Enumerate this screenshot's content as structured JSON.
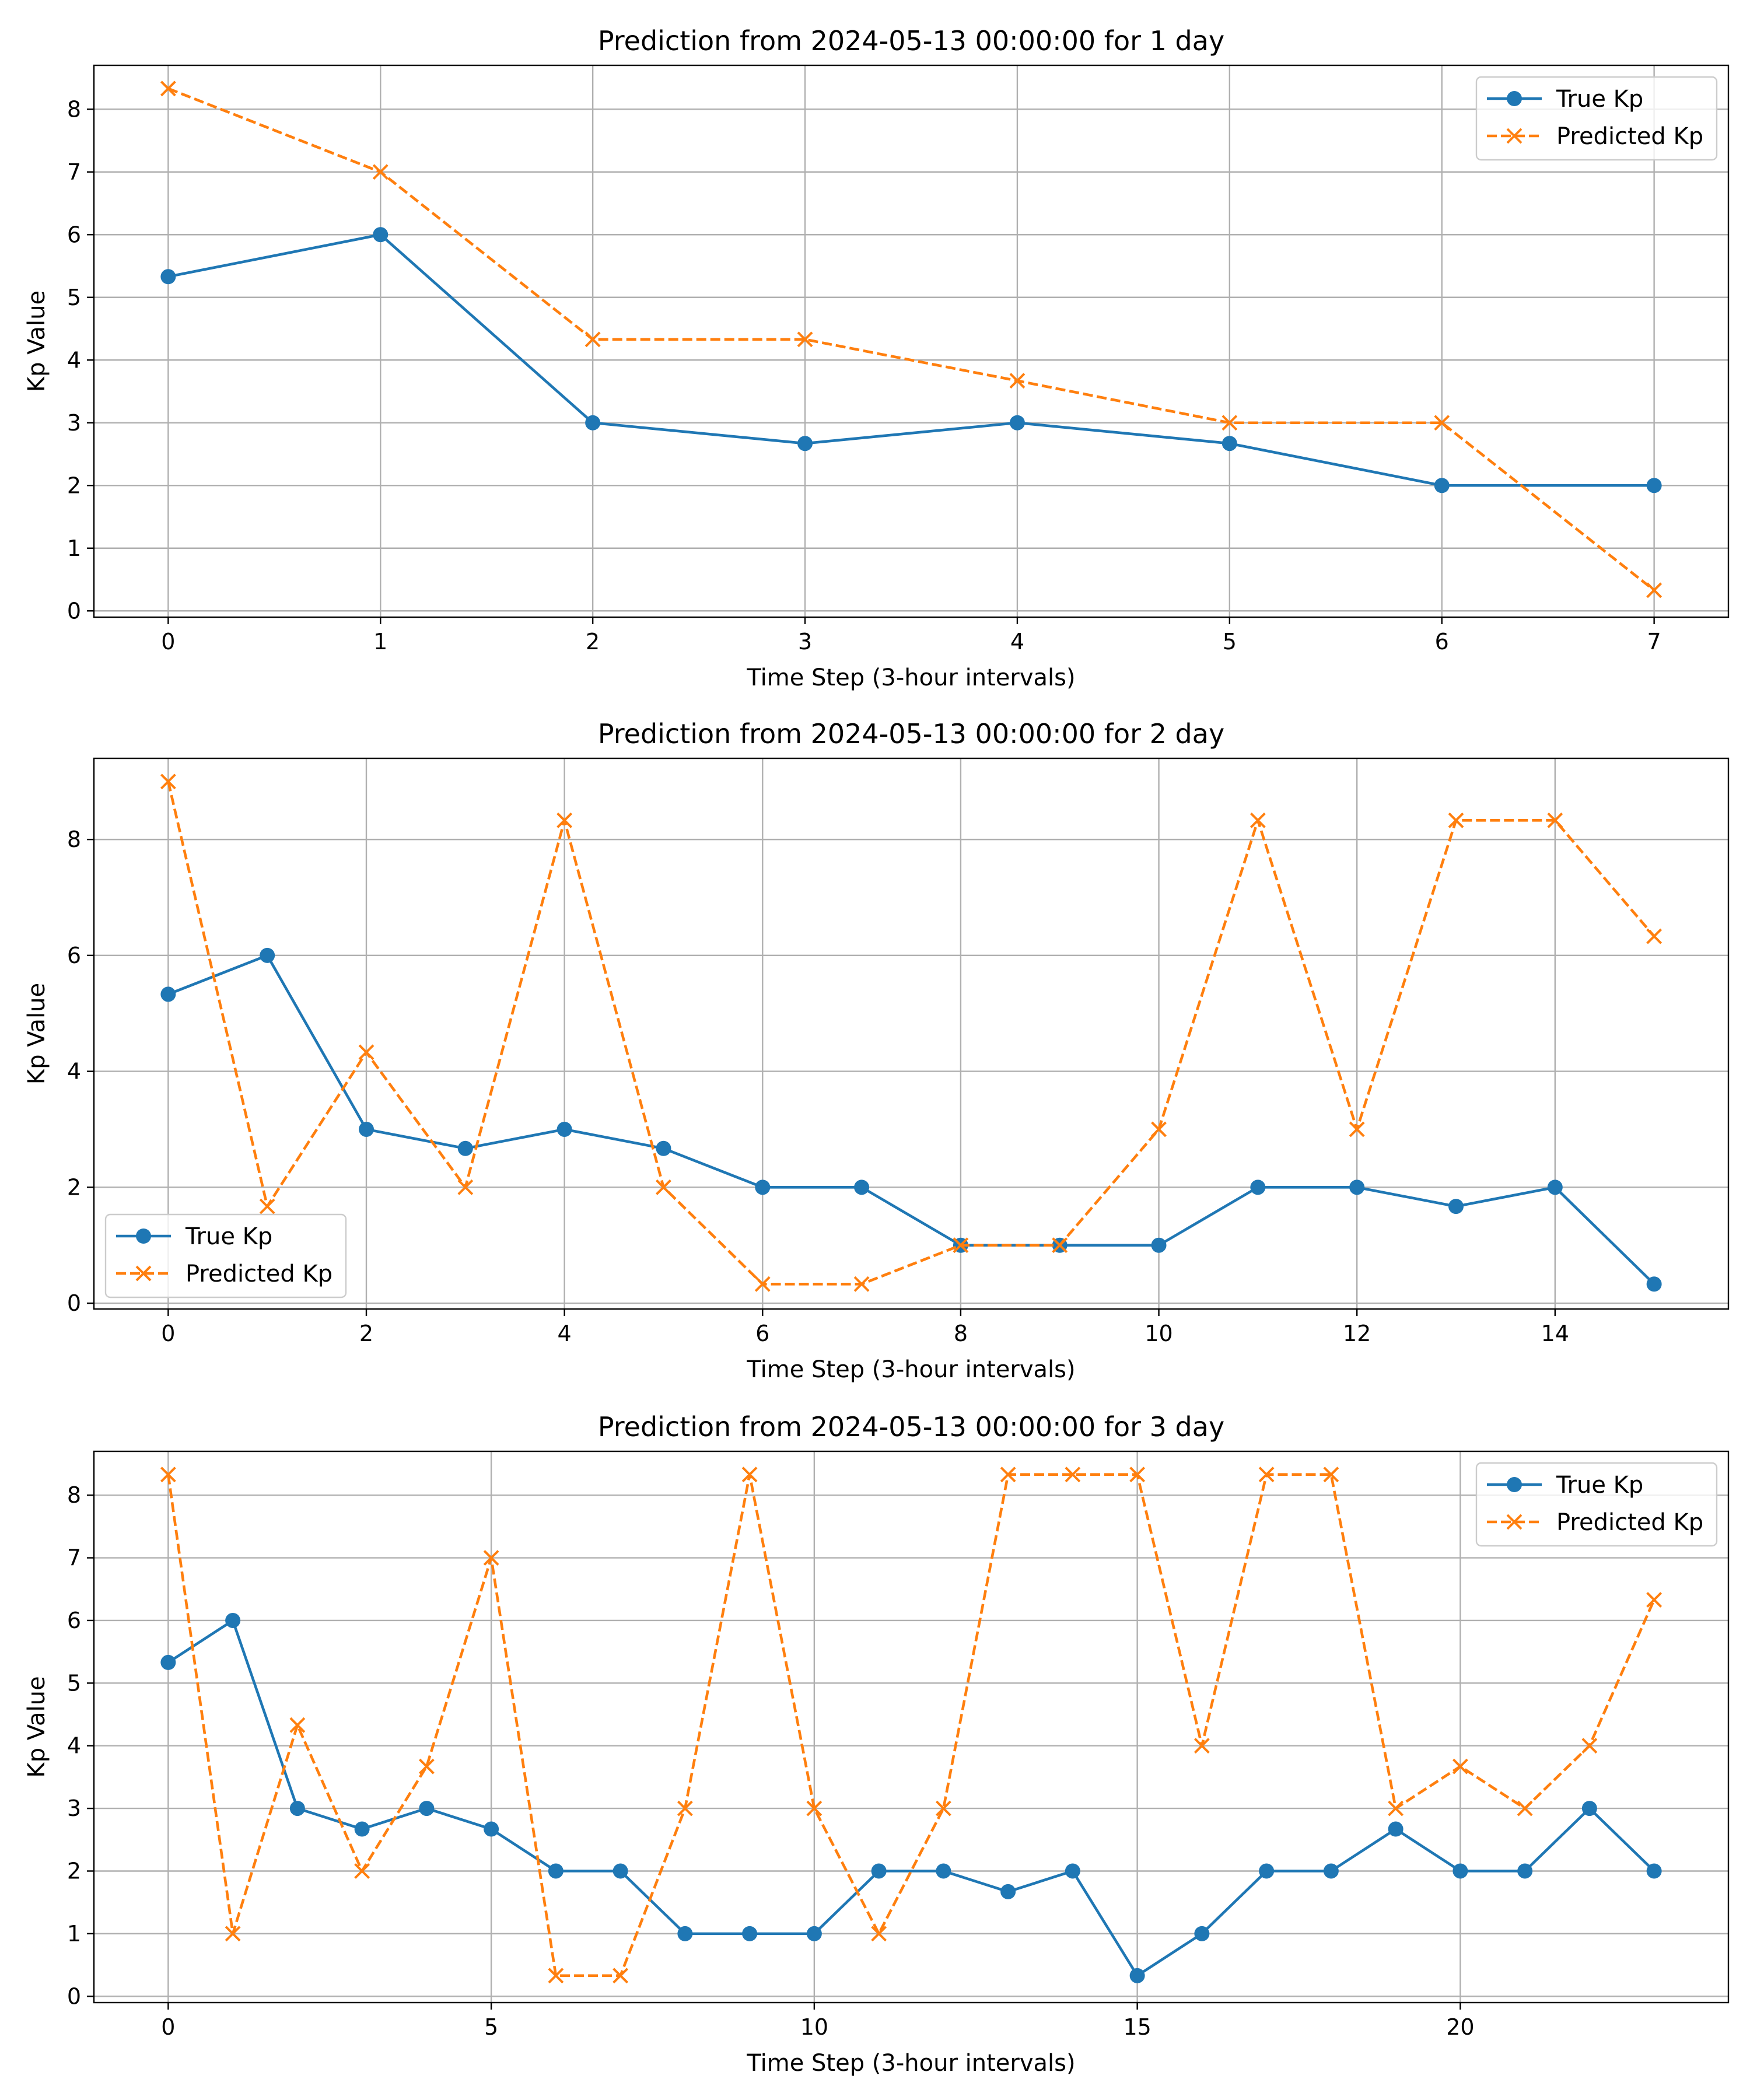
{
  "colors": {
    "true_kp": "#1f77b4",
    "predicted_kp": "#ff7f0e",
    "grid": "#b0b0b0",
    "axes": "#000000",
    "legend_border": "#cccccc"
  },
  "chart_data": [
    {
      "type": "line",
      "title": "Prediction from 2024-05-13 00:00:00 for 1 day",
      "xlabel": "Time Step (3-hour intervals)",
      "ylabel": "Kp Value",
      "xlim": [
        -0.35,
        7.35
      ],
      "ylim": [
        -0.1,
        8.7
      ],
      "xticks": [
        0,
        1,
        2,
        3,
        4,
        5,
        6,
        7
      ],
      "yticks": [
        0,
        1,
        2,
        3,
        4,
        5,
        6,
        7,
        8
      ],
      "grid": true,
      "legend_loc": "upper right",
      "series": [
        {
          "name": "True Kp",
          "style": "solid-circle",
          "x": [
            0,
            1,
            2,
            3,
            4,
            5,
            6,
            7
          ],
          "values": [
            5.33,
            6.0,
            3.0,
            2.67,
            3.0,
            2.67,
            2.0,
            2.0
          ]
        },
        {
          "name": "Predicted Kp",
          "style": "dashed-x",
          "x": [
            0,
            1,
            2,
            3,
            4,
            5,
            6,
            7
          ],
          "values": [
            8.33,
            7.0,
            4.33,
            4.33,
            3.67,
            3.0,
            3.0,
            0.33
          ]
        }
      ]
    },
    {
      "type": "line",
      "title": "Prediction from 2024-05-13 00:00:00 for 2 day",
      "xlabel": "Time Step (3-hour intervals)",
      "ylabel": "Kp Value",
      "xlim": [
        -0.75,
        15.75
      ],
      "ylim": [
        -0.1,
        9.4
      ],
      "xticks": [
        0,
        2,
        4,
        6,
        8,
        10,
        12,
        14
      ],
      "yticks": [
        0,
        2,
        4,
        6,
        8
      ],
      "grid": true,
      "legend_loc": "lower left",
      "series": [
        {
          "name": "True Kp",
          "style": "solid-circle",
          "x": [
            0,
            1,
            2,
            3,
            4,
            5,
            6,
            7,
            8,
            9,
            10,
            11,
            12,
            13,
            14,
            15
          ],
          "values": [
            5.33,
            6.0,
            3.0,
            2.67,
            3.0,
            2.67,
            2.0,
            2.0,
            1.0,
            1.0,
            1.0,
            2.0,
            2.0,
            1.67,
            2.0,
            0.33
          ]
        },
        {
          "name": "Predicted Kp",
          "style": "dashed-x",
          "x": [
            0,
            1,
            2,
            3,
            4,
            5,
            6,
            7,
            8,
            9,
            10,
            11,
            12,
            13,
            14,
            15
          ],
          "values": [
            9.0,
            1.67,
            4.33,
            2.0,
            8.33,
            2.0,
            0.33,
            0.33,
            1.0,
            1.0,
            3.0,
            8.33,
            3.0,
            8.33,
            8.33,
            6.33
          ]
        }
      ]
    },
    {
      "type": "line",
      "title": "Prediction from 2024-05-13 00:00:00 for 3 day",
      "xlabel": "Time Step (3-hour intervals)",
      "ylabel": "Kp Value",
      "xlim": [
        -1.15,
        24.15
      ],
      "ylim": [
        -0.1,
        8.7
      ],
      "xticks": [
        0,
        5,
        10,
        15,
        20
      ],
      "yticks": [
        0,
        1,
        2,
        3,
        4,
        5,
        6,
        7,
        8
      ],
      "grid": true,
      "legend_loc": "upper right",
      "series": [
        {
          "name": "True Kp",
          "style": "solid-circle",
          "x": [
            0,
            1,
            2,
            3,
            4,
            5,
            6,
            7,
            8,
            9,
            10,
            11,
            12,
            13,
            14,
            15,
            16,
            17,
            18,
            19,
            20,
            21,
            22,
            23
          ],
          "values": [
            5.33,
            6.0,
            3.0,
            2.67,
            3.0,
            2.67,
            2.0,
            2.0,
            1.0,
            1.0,
            1.0,
            2.0,
            2.0,
            1.67,
            2.0,
            0.33,
            1.0,
            2.0,
            2.0,
            2.67,
            2.0,
            2.0,
            3.0,
            2.0
          ]
        },
        {
          "name": "Predicted Kp",
          "style": "dashed-x",
          "x": [
            0,
            1,
            2,
            3,
            4,
            5,
            6,
            7,
            8,
            9,
            10,
            11,
            12,
            13,
            14,
            15,
            16,
            17,
            18,
            19,
            20,
            21,
            22,
            23
          ],
          "values": [
            8.33,
            1.0,
            4.33,
            2.0,
            3.67,
            7.0,
            0.33,
            0.33,
            3.0,
            8.33,
            3.0,
            1.0,
            3.0,
            8.33,
            8.33,
            8.33,
            4.0,
            8.33,
            8.33,
            3.0,
            3.67,
            3.0,
            4.0,
            6.33
          ]
        }
      ]
    }
  ]
}
